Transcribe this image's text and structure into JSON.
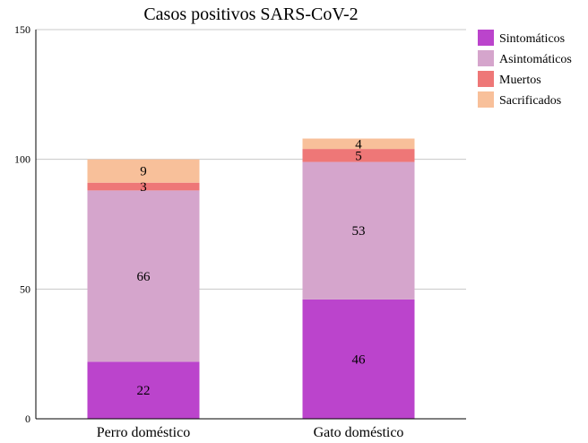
{
  "chart_data": {
    "type": "bar",
    "stacked": true,
    "title": "Casos positivos SARS-CoV-2",
    "xlabel": "",
    "ylabel": "",
    "categories": [
      "Perro doméstico",
      "Gato doméstico"
    ],
    "series": [
      {
        "name": "Sintomáticos",
        "values": [
          22,
          46
        ],
        "color": "#bb44cc"
      },
      {
        "name": "Asintomáticos",
        "values": [
          66,
          53
        ],
        "color": "#d5a5cc"
      },
      {
        "name": "Muertos",
        "values": [
          3,
          5
        ],
        "color": "#ee7777"
      },
      {
        "name": "Sacrificados",
        "values": [
          9,
          4
        ],
        "color": "#f8c09a"
      }
    ],
    "ylim": [
      0,
      150
    ],
    "yticks": [
      "0",
      "50",
      "100",
      "150"
    ],
    "grid": true,
    "legend_position": "top-right"
  }
}
